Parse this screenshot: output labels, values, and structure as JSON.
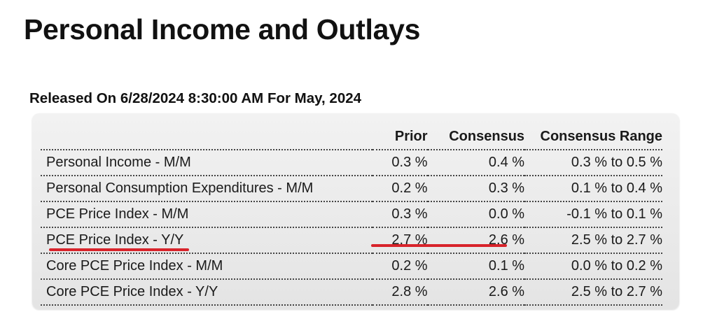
{
  "title": "Personal Income and Outlays",
  "release": "Released On 6/28/2024 8:30:00 AM For May, 2024",
  "table": {
    "headers": {
      "name": "",
      "prior": "Prior",
      "consensus": "Consensus",
      "range": "Consensus Range"
    },
    "rows": [
      {
        "name": "Personal Income - M/M",
        "prior": "0.3 %",
        "consensus": "0.4 %",
        "range": "0.3 % to 0.5 %"
      },
      {
        "name": "Personal Consumption Expenditures - M/M",
        "prior": "0.2 %",
        "consensus": "0.3 %",
        "range": "0.1 % to 0.4 %"
      },
      {
        "name": "PCE Price Index - M/M",
        "prior": "0.3 %",
        "consensus": "0.0 %",
        "range": "-0.1 % to 0.1 %"
      },
      {
        "name": "PCE Price Index - Y/Y",
        "prior": "2.7 %",
        "consensus": "2.6 %",
        "range": "2.5 % to 2.7 %"
      },
      {
        "name": "Core PCE Price Index - M/M",
        "prior": "0.2 %",
        "consensus": "0.1 %",
        "range": "0.0 % to 0.2 %"
      },
      {
        "name": "Core PCE Price Index - Y/Y",
        "prior": "2.8 %",
        "consensus": "2.6 %",
        "range": "2.5 % to 2.7 %"
      }
    ]
  },
  "highlight_color": "#d8232a"
}
